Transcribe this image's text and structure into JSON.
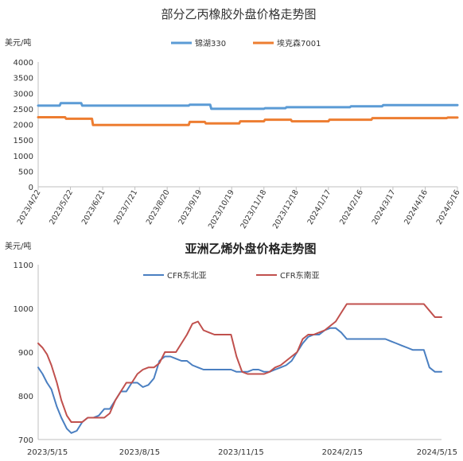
{
  "chart_data": [
    {
      "type": "line",
      "title": "部分乙丙橡胶外盘价格走势图",
      "ylabel": "美元/吨",
      "ylim": [
        0,
        4000
      ],
      "yticks": [
        0,
        500,
        1000,
        1500,
        2000,
        2500,
        3000,
        3500,
        4000
      ],
      "x_tick_labels": [
        "2023/4/22",
        "2023/5/22",
        "2023/6/21",
        "2023/7/21",
        "2023/8/20",
        "2023/9/19",
        "2023/10/19",
        "2023/11/18",
        "2023/12/18",
        "2024/1/17",
        "2024/2/16",
        "2024/3/17",
        "2024/4/16",
        "2024/5/16"
      ],
      "legend_position": "top",
      "grid": false,
      "colors": [
        "#5b9bd5",
        "#ed7d31"
      ],
      "series": [
        {
          "name": "锦湖330",
          "x": [
            "2023/4/22",
            "2023/5/12",
            "2023/5/13",
            "2023/6/1",
            "2023/6/2",
            "2023/9/9",
            "2023/9/10",
            "2023/9/29",
            "2023/9/30",
            "2023/11/18",
            "2023/11/19",
            "2023/12/8",
            "2023/12/9",
            "2024/2/6",
            "2024/2/7",
            "2024/3/7",
            "2024/3/8",
            "2024/5/16"
          ],
          "values": [
            2600,
            2600,
            2680,
            2680,
            2600,
            2600,
            2630,
            2630,
            2500,
            2500,
            2520,
            2520,
            2550,
            2550,
            2580,
            2580,
            2620,
            2620
          ]
        },
        {
          "name": "埃克森7001",
          "x": [
            "2023/4/22",
            "2023/5/17",
            "2023/5/18",
            "2023/6/11",
            "2023/6/12",
            "2023/9/9",
            "2023/9/10",
            "2023/9/24",
            "2023/9/25",
            "2023/10/26",
            "2023/10/27",
            "2023/11/18",
            "2023/11/19",
            "2023/12/13",
            "2023/12/14",
            "2024/1/17",
            "2024/1/18",
            "2024/2/26",
            "2024/2/27",
            "2024/5/6",
            "2024/5/7",
            "2024/5/16"
          ],
          "values": [
            2230,
            2230,
            2180,
            2180,
            1980,
            1980,
            2080,
            2080,
            2030,
            2030,
            2100,
            2100,
            2150,
            2150,
            2100,
            2100,
            2150,
            2150,
            2200,
            2200,
            2220,
            2220
          ]
        }
      ]
    },
    {
      "type": "line",
      "title": "亚洲乙烯外盘价格走势图",
      "ylabel": "美元/吨",
      "ylim": [
        700,
        1100
      ],
      "yticks": [
        700,
        800,
        900,
        1000,
        1100
      ],
      "x_tick_labels": [
        "2023/5/15",
        "2023/8/15",
        "2023/11/15",
        "2024/2/15",
        "2024/5/15"
      ],
      "legend_position": "top",
      "grid": false,
      "colors": [
        "#4a7fc1",
        "#c0504d"
      ],
      "series": [
        {
          "name": "CFR东北亚",
          "x": [
            "2023/5/15",
            "2023/5/19",
            "2023/5/23",
            "2023/5/27",
            "2023/6/1",
            "2023/6/5",
            "2023/6/10",
            "2023/6/14",
            "2023/6/19",
            "2023/6/24",
            "2023/6/29",
            "2023/7/4",
            "2023/7/9",
            "2023/7/14",
            "2023/7/19",
            "2023/7/24",
            "2023/7/29",
            "2023/8/3",
            "2023/8/8",
            "2023/8/13",
            "2023/8/18",
            "2023/8/23",
            "2023/8/28",
            "2023/9/2",
            "2023/9/7",
            "2023/9/12",
            "2023/9/17",
            "2023/9/22",
            "2023/9/27",
            "2023/10/2",
            "2023/10/7",
            "2023/10/12",
            "2023/10/17",
            "2023/10/22",
            "2023/10/27",
            "2023/11/1",
            "2023/11/6",
            "2023/11/11",
            "2023/11/16",
            "2023/11/21",
            "2023/11/26",
            "2023/12/1",
            "2023/12/6",
            "2023/12/11",
            "2023/12/16",
            "2023/12/21",
            "2023/12/26",
            "2023/12/31",
            "2024/1/5",
            "2024/1/10",
            "2024/1/15",
            "2024/1/20",
            "2024/1/25",
            "2024/1/30",
            "2024/2/4",
            "2024/2/9",
            "2024/2/14",
            "2024/2/19",
            "2024/2/24",
            "2024/2/29",
            "2024/3/5",
            "2024/3/10",
            "2024/3/15",
            "2024/3/20",
            "2024/3/25",
            "2024/3/30",
            "2024/4/4",
            "2024/4/9",
            "2024/4/14",
            "2024/4/19",
            "2024/4/24",
            "2024/4/29",
            "2024/5/4",
            "2024/5/9",
            "2024/5/15"
          ],
          "values": [
            865,
            850,
            830,
            815,
            775,
            750,
            725,
            715,
            720,
            740,
            750,
            750,
            755,
            770,
            770,
            790,
            810,
            810,
            830,
            830,
            820,
            825,
            840,
            880,
            890,
            890,
            885,
            880,
            880,
            870,
            865,
            860,
            860,
            860,
            860,
            860,
            860,
            855,
            855,
            855,
            860,
            860,
            855,
            855,
            860,
            865,
            870,
            880,
            900,
            920,
            935,
            940,
            940,
            950,
            955,
            955,
            945,
            930,
            930,
            930,
            930,
            930,
            930,
            930,
            930,
            925,
            920,
            915,
            910,
            905,
            905,
            905,
            865,
            855,
            855
          ]
        },
        {
          "name": "CFR东南亚",
          "x": [
            "2023/5/15",
            "2023/5/19",
            "2023/5/23",
            "2023/5/27",
            "2023/6/1",
            "2023/6/5",
            "2023/6/10",
            "2023/6/14",
            "2023/6/19",
            "2023/6/24",
            "2023/6/29",
            "2023/7/4",
            "2023/7/9",
            "2023/7/14",
            "2023/7/19",
            "2023/7/24",
            "2023/7/29",
            "2023/8/3",
            "2023/8/8",
            "2023/8/13",
            "2023/8/18",
            "2023/8/23",
            "2023/8/28",
            "2023/9/2",
            "2023/9/7",
            "2023/9/12",
            "2023/9/17",
            "2023/9/22",
            "2023/9/27",
            "2023/10/2",
            "2023/10/7",
            "2023/10/12",
            "2023/10/17",
            "2023/10/22",
            "2023/10/27",
            "2023/11/1",
            "2023/11/6",
            "2023/11/11",
            "2023/11/16",
            "2023/11/21",
            "2023/11/26",
            "2023/12/1",
            "2023/12/6",
            "2023/12/11",
            "2023/12/16",
            "2023/12/21",
            "2023/12/26",
            "2023/12/31",
            "2024/1/5",
            "2024/1/10",
            "2024/1/15",
            "2024/1/20",
            "2024/1/25",
            "2024/1/30",
            "2024/2/4",
            "2024/2/9",
            "2024/2/14",
            "2024/2/19",
            "2024/2/24",
            "2024/2/29",
            "2024/3/5",
            "2024/3/10",
            "2024/3/15",
            "2024/3/20",
            "2024/3/25",
            "2024/3/30",
            "2024/4/4",
            "2024/4/9",
            "2024/4/14",
            "2024/4/19",
            "2024/4/24",
            "2024/4/29",
            "2024/5/4",
            "2024/5/9",
            "2024/5/15"
          ],
          "values": [
            920,
            910,
            895,
            870,
            830,
            790,
            755,
            740,
            740,
            740,
            750,
            750,
            750,
            750,
            760,
            790,
            810,
            830,
            830,
            850,
            860,
            865,
            865,
            875,
            900,
            900,
            900,
            920,
            940,
            965,
            970,
            950,
            945,
            940,
            940,
            940,
            940,
            890,
            855,
            850,
            850,
            850,
            850,
            855,
            865,
            870,
            880,
            890,
            900,
            930,
            940,
            940,
            945,
            950,
            960,
            970,
            990,
            1010,
            1010,
            1010,
            1010,
            1010,
            1010,
            1010,
            1010,
            1010,
            1010,
            1010,
            1010,
            1010,
            1010,
            1010,
            995,
            980,
            980
          ]
        }
      ]
    }
  ]
}
